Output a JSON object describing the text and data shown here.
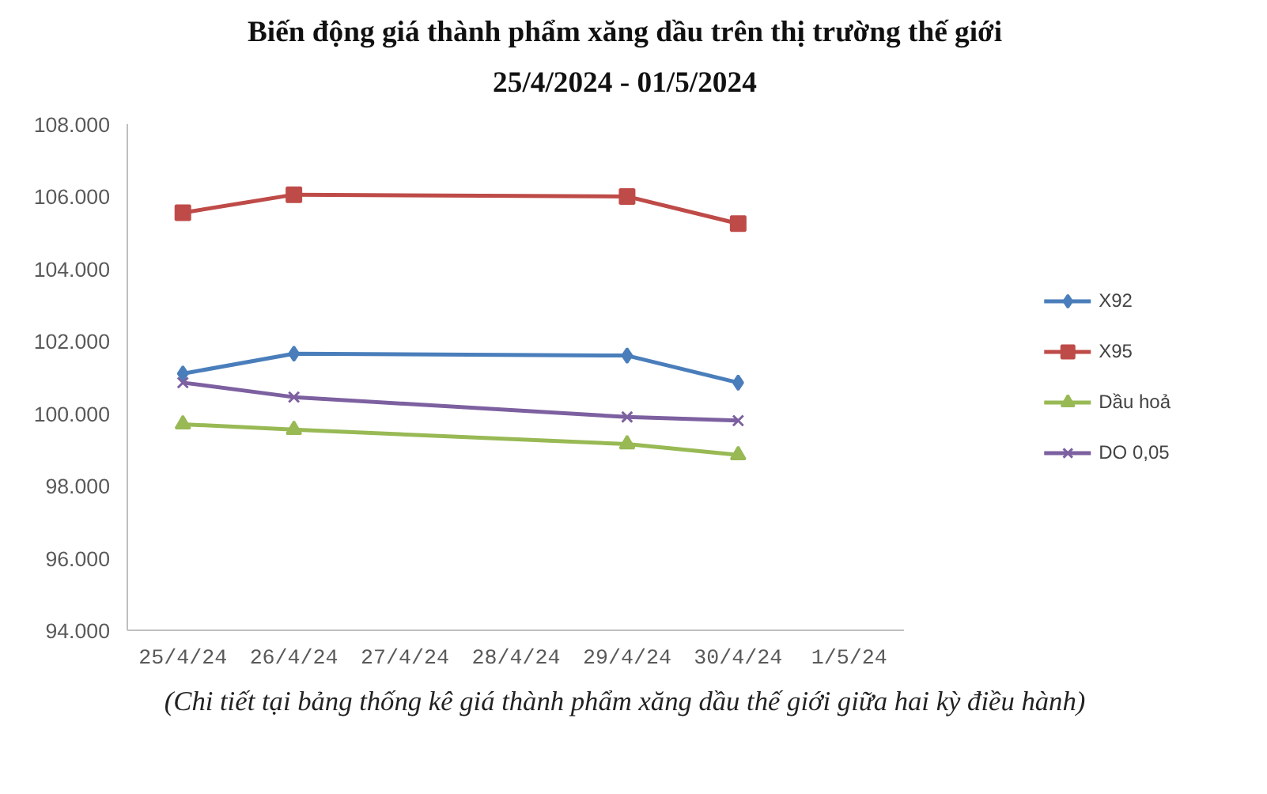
{
  "chart_data": {
    "type": "line",
    "title": "Biến động giá thành phẩm xăng dầu trên thị trường thế giới\n25/4/2024 - 01/5/2024",
    "categories": [
      "25/4/24",
      "26/4/24",
      "27/4/24",
      "28/4/24",
      "29/4/24",
      "30/4/24",
      "1/5/24"
    ],
    "series": [
      {
        "name": "X92",
        "color": "#4a7ebb",
        "marker": "diamond",
        "values": [
          101100,
          101650,
          null,
          null,
          101600,
          100850,
          null
        ]
      },
      {
        "name": "X95",
        "color": "#be4b48",
        "marker": "square",
        "values": [
          105550,
          106050,
          null,
          null,
          106000,
          105250,
          null
        ]
      },
      {
        "name": "Dầu hoả",
        "color": "#98b954",
        "marker": "triangle",
        "values": [
          99700,
          99550,
          null,
          null,
          99150,
          98850,
          null
        ]
      },
      {
        "name": "DO 0,05",
        "color": "#7d60a0",
        "marker": "cross",
        "values": [
          100850,
          100450,
          null,
          null,
          99900,
          99800,
          null
        ]
      }
    ],
    "ylim": [
      94000,
      108000
    ],
    "yticks": [
      {
        "value": 94000,
        "label": "94.000"
      },
      {
        "value": 96000,
        "label": "96.000"
      },
      {
        "value": 98000,
        "label": "98.000"
      },
      {
        "value": 100000,
        "label": "100.000"
      },
      {
        "value": 102000,
        "label": "102.000"
      },
      {
        "value": 104000,
        "label": "104.000"
      },
      {
        "value": 106000,
        "label": "106.000"
      },
      {
        "value": 108000,
        "label": "108.000"
      }
    ],
    "grid": false,
    "legend": "right",
    "annotations": [
      "(Chi tiết tại bảng thống kê giá thành phẩm xăng dầu thế giới giữa hai kỳ điều hành)"
    ]
  }
}
